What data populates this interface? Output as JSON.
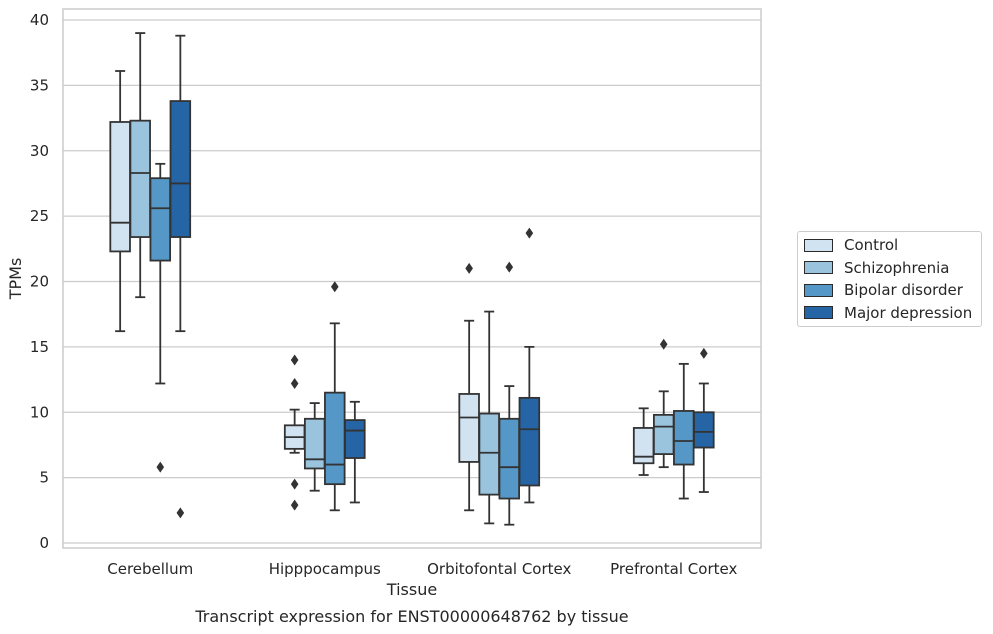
{
  "chart_data": {
    "type": "box",
    "caption": "Transcript expression for ENST00000648762 by tissue",
    "xlabel": "Tissue",
    "ylabel": "TPMs",
    "ylim": [
      -0.2,
      40.5
    ],
    "yticks": [
      0,
      5,
      10,
      15,
      20,
      25,
      30,
      35,
      40
    ],
    "grid": "horizontal",
    "legend_position": "right",
    "categories": [
      "Cerebellum",
      "Hipppocampus",
      "Orbitofontal Cortex",
      "Prefrontal Cortex"
    ],
    "series": [
      {
        "name": "Control",
        "color": "#d1e2f1",
        "boxes": [
          {
            "whislo": 16.2,
            "q1": 22.3,
            "med": 24.5,
            "q3": 32.2,
            "whishi": 36.1,
            "fliers": []
          },
          {
            "whislo": 6.9,
            "q1": 7.2,
            "med": 8.1,
            "q3": 9.0,
            "whishi": 10.2,
            "fliers": [
              14.0,
              12.2,
              4.5,
              2.9
            ]
          },
          {
            "whislo": 2.5,
            "q1": 6.2,
            "med": 9.6,
            "q3": 11.4,
            "whishi": 17.0,
            "fliers": [
              21.0
            ]
          },
          {
            "whislo": 5.2,
            "q1": 6.1,
            "med": 6.6,
            "q3": 8.8,
            "whishi": 10.3,
            "fliers": []
          }
        ]
      },
      {
        "name": "Schizophrenia",
        "color": "#9ac3de",
        "boxes": [
          {
            "whislo": 18.8,
            "q1": 23.4,
            "med": 28.3,
            "q3": 32.3,
            "whishi": 39.0,
            "fliers": []
          },
          {
            "whislo": 4.0,
            "q1": 5.7,
            "med": 6.4,
            "q3": 9.5,
            "whishi": 10.7,
            "fliers": []
          },
          {
            "whislo": 1.5,
            "q1": 3.7,
            "med": 6.9,
            "q3": 9.9,
            "whishi": 17.7,
            "fliers": []
          },
          {
            "whislo": 5.8,
            "q1": 6.8,
            "med": 8.9,
            "q3": 9.8,
            "whishi": 11.6,
            "fliers": [
              15.2
            ]
          }
        ]
      },
      {
        "name": "Bipolar disorder",
        "color": "#5597c6",
        "boxes": [
          {
            "whislo": 12.2,
            "q1": 21.6,
            "med": 25.6,
            "q3": 27.9,
            "whishi": 29.0,
            "fliers": [
              5.8
            ]
          },
          {
            "whislo": 2.5,
            "q1": 4.5,
            "med": 6.0,
            "q3": 11.5,
            "whishi": 16.8,
            "fliers": [
              19.6
            ]
          },
          {
            "whislo": 1.4,
            "q1": 3.4,
            "med": 5.8,
            "q3": 9.5,
            "whishi": 12.0,
            "fliers": [
              21.1
            ]
          },
          {
            "whislo": 3.4,
            "q1": 6.0,
            "med": 7.8,
            "q3": 10.1,
            "whishi": 13.7,
            "fliers": []
          }
        ]
      },
      {
        "name": "Major depression",
        "color": "#2565a6",
        "boxes": [
          {
            "whislo": 16.2,
            "q1": 23.4,
            "med": 27.5,
            "q3": 33.8,
            "whishi": 38.8,
            "fliers": [
              2.3
            ]
          },
          {
            "whislo": 3.1,
            "q1": 6.5,
            "med": 8.6,
            "q3": 9.4,
            "whishi": 10.8,
            "fliers": []
          },
          {
            "whislo": 3.1,
            "q1": 4.4,
            "med": 8.7,
            "q3": 11.1,
            "whishi": 15.0,
            "fliers": [
              23.7
            ]
          },
          {
            "whislo": 3.9,
            "q1": 7.3,
            "med": 8.5,
            "q3": 10.0,
            "whishi": 12.2,
            "fliers": [
              14.5
            ]
          }
        ]
      }
    ]
  }
}
